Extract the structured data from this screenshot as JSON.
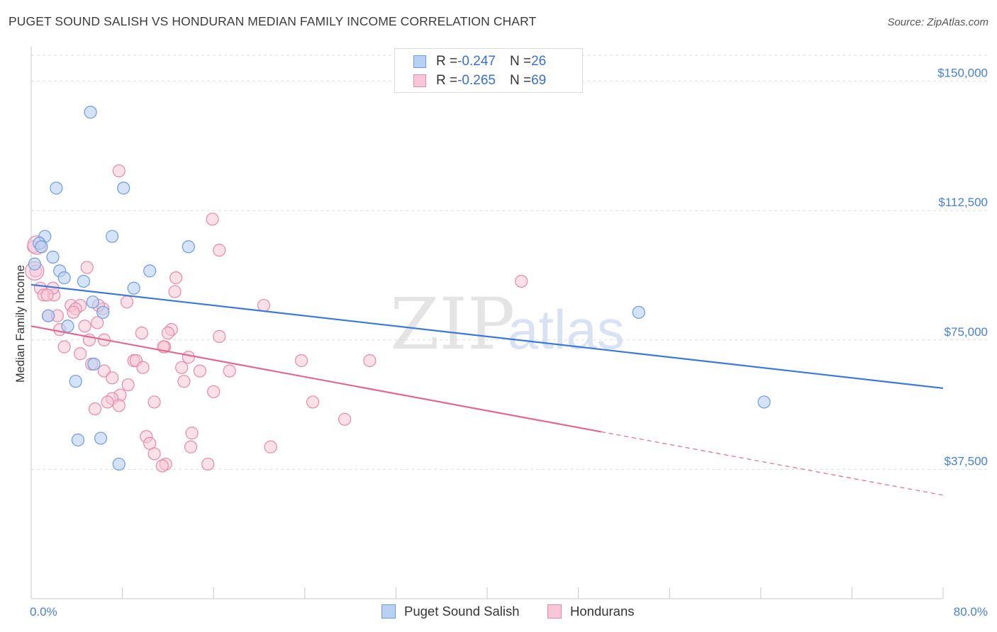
{
  "header": {
    "title": "PUGET SOUND SALISH VS HONDURAN MEDIAN FAMILY INCOME CORRELATION CHART",
    "source": "Source: ZipAtlas.com"
  },
  "watermark": {
    "zip": "ZIP",
    "atlas": "atlas"
  },
  "legend": {
    "items": [
      {
        "r_label": "R = ",
        "r_value": "-0.247",
        "n_label": "N = ",
        "n_value": "26"
      },
      {
        "r_label": "R = ",
        "r_value": "-0.265",
        "n_label": "N = ",
        "n_value": "69"
      }
    ]
  },
  "bottom_legend": {
    "series1": "Puget Sound Salish",
    "series2": "Hondurans"
  },
  "colors": {
    "blue_fill": "#b8d0f3",
    "blue_stroke": "#6f9bd9",
    "blue_line": "#3b78d8",
    "pink_fill": "#f8c6d6",
    "pink_stroke": "#e48aaa",
    "pink_line": "#e0688f",
    "tick_text": "#4a7fd0",
    "grid": "#dcdcdc"
  },
  "chart_data": {
    "type": "scatter",
    "title": "PUGET SOUND SALISH VS HONDURAN MEDIAN FAMILY INCOME CORRELATION CHART",
    "xlabel": "",
    "ylabel": "Median Family Income",
    "xlim": [
      0,
      80
    ],
    "ylim": [
      0,
      157500
    ],
    "x_tick_labels": [
      {
        "value": 0,
        "label": "0.0%"
      },
      {
        "value": 80,
        "label": "80.0%"
      }
    ],
    "y_ticks": [
      {
        "value": 37500,
        "label": "$37,500"
      },
      {
        "value": 75000,
        "label": "$75,000"
      },
      {
        "value": 112500,
        "label": "$112,500"
      },
      {
        "value": 150000,
        "label": "$150,000"
      }
    ],
    "series": [
      {
        "name": "Puget Sound Salish",
        "trend": {
          "x": [
            0,
            80
          ],
          "y": [
            91000,
            61000
          ],
          "dashed_from": null
        },
        "points": [
          [
            5.2,
            141000
          ],
          [
            2.2,
            119000
          ],
          [
            8.1,
            119000
          ],
          [
            1.2,
            105000
          ],
          [
            7.1,
            105000
          ],
          [
            0.7,
            103000
          ],
          [
            13.8,
            102000
          ],
          [
            1.9,
            99000
          ],
          [
            0.3,
            97000
          ],
          [
            2.5,
            95000
          ],
          [
            10.4,
            95000
          ],
          [
            2.9,
            93000
          ],
          [
            4.6,
            92000
          ],
          [
            9.0,
            90000
          ],
          [
            5.4,
            86000
          ],
          [
            6.3,
            83000
          ],
          [
            1.5,
            82000
          ],
          [
            3.2,
            79000
          ],
          [
            5.5,
            68000
          ],
          [
            3.9,
            63000
          ],
          [
            4.1,
            46000
          ],
          [
            6.1,
            46500
          ],
          [
            7.7,
            39000
          ],
          [
            53.3,
            83000
          ],
          [
            64.3,
            57000
          ],
          [
            0.9,
            102000
          ]
        ]
      },
      {
        "name": "Hondurans",
        "trend": {
          "x": [
            0,
            80
          ],
          "y": [
            79000,
            30000
          ],
          "dashed_from": 50
        },
        "points": [
          [
            7.7,
            124000
          ],
          [
            15.9,
            110000
          ],
          [
            16.5,
            101000
          ],
          [
            0.2,
            102000
          ],
          [
            0.4,
            95000
          ],
          [
            4.9,
            96000
          ],
          [
            12.7,
            93000
          ],
          [
            0.8,
            90000
          ],
          [
            12.6,
            89000
          ],
          [
            43.0,
            92000
          ],
          [
            1.1,
            88000
          ],
          [
            2.0,
            88000
          ],
          [
            8.4,
            86000
          ],
          [
            20.4,
            85000
          ],
          [
            3.5,
            85000
          ],
          [
            4.3,
            85000
          ],
          [
            3.9,
            84000
          ],
          [
            6.3,
            84000
          ],
          [
            1.5,
            82000
          ],
          [
            2.3,
            82000
          ],
          [
            5.8,
            80000
          ],
          [
            4.7,
            79000
          ],
          [
            2.5,
            78000
          ],
          [
            12.3,
            78000
          ],
          [
            12.0,
            77000
          ],
          [
            9.7,
            77000
          ],
          [
            16.5,
            76000
          ],
          [
            5.1,
            75000
          ],
          [
            6.4,
            75000
          ],
          [
            11.7,
            73000
          ],
          [
            2.9,
            73000
          ],
          [
            4.3,
            71000
          ],
          [
            13.8,
            70000
          ],
          [
            9.0,
            69000
          ],
          [
            9.2,
            69000
          ],
          [
            23.7,
            69000
          ],
          [
            29.7,
            69000
          ],
          [
            5.3,
            68000
          ],
          [
            13.2,
            67000
          ],
          [
            9.8,
            67000
          ],
          [
            6.4,
            66000
          ],
          [
            14.8,
            66000
          ],
          [
            17.4,
            66000
          ],
          [
            7.1,
            64000
          ],
          [
            13.4,
            63000
          ],
          [
            8.5,
            62000
          ],
          [
            7.8,
            59000
          ],
          [
            16.0,
            60000
          ],
          [
            7.1,
            58000
          ],
          [
            6.7,
            57000
          ],
          [
            10.8,
            57000
          ],
          [
            24.7,
            57000
          ],
          [
            7.7,
            56000
          ],
          [
            5.6,
            55000
          ],
          [
            27.5,
            52000
          ],
          [
            14.1,
            48000
          ],
          [
            10.1,
            47000
          ],
          [
            10.4,
            45000
          ],
          [
            21.0,
            44000
          ],
          [
            14.0,
            44000
          ],
          [
            10.8,
            42000
          ],
          [
            11.8,
            39000
          ],
          [
            11.5,
            38500
          ],
          [
            15.5,
            39000
          ],
          [
            3.7,
            83000
          ],
          [
            1.9,
            90000
          ],
          [
            1.4,
            88000
          ],
          [
            5.9,
            85000
          ],
          [
            11.6,
            73000
          ]
        ]
      }
    ]
  }
}
